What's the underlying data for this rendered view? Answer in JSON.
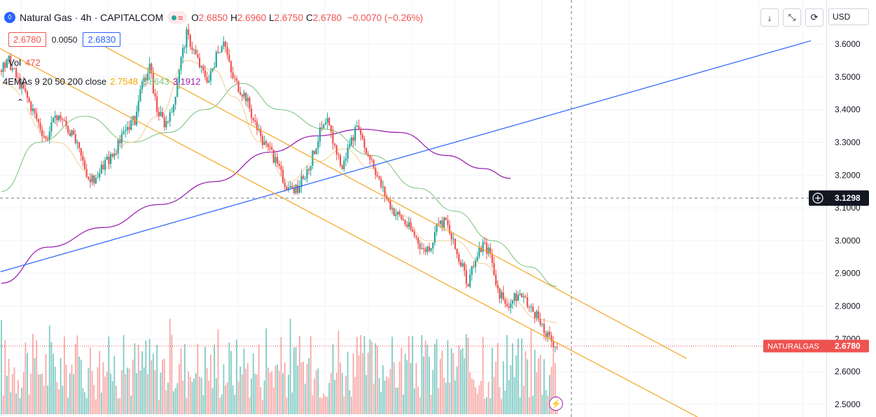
{
  "legend": {
    "symbol_title": "Natural Gas · 4h · CAPITALCOM",
    "icon_glyph": "◊",
    "wave_glyph": "≈",
    "ohlc": [
      {
        "label": "O",
        "value": "2.6850"
      },
      {
        "label": "H",
        "value": "2.6960"
      },
      {
        "label": "L",
        "value": "2.6750"
      },
      {
        "label": "C",
        "value": "2.6780"
      }
    ],
    "change": "−0.0070 (−0.26%)"
  },
  "trade": {
    "sell": "2.6780",
    "spread": "0.0050",
    "buy": "2.6830"
  },
  "volume": {
    "label": "Vol",
    "value": "472"
  },
  "ema": {
    "label": "4EMAs 9 20 50 200 close",
    "values": [
      {
        "value": "2.7548",
        "color": "#f2a900"
      },
      {
        "value": "2.8643",
        "color": "#81c784"
      },
      {
        "value": "3.1912",
        "color": "#9c27b0"
      }
    ]
  },
  "toolbar": {
    "down_glyph": "↓",
    "collapse_glyph": "⤡",
    "settings_glyph": "⟳",
    "currency": "USD"
  },
  "collapse_glyph": "⌃",
  "flash_glyph": "⚡",
  "crosshair_label": "3.1298",
  "last_price": {
    "symbol": "NATURALGAS",
    "value": "2.6780"
  },
  "colors": {
    "up": "#26a69a",
    "down": "#ef5350",
    "ema9": "#f2a900",
    "ema20": "#f2d29c",
    "ema50": "#81c784",
    "ema200": "#9c27b0",
    "trendline": "#2962ff",
    "channel": "#f5a623"
  },
  "chart_data": {
    "type": "candlestick",
    "ylim": [
      2.48,
      3.68
    ],
    "y_ticks": [
      "3.6000",
      "3.5000",
      "3.4000",
      "3.3000",
      "3.2000",
      "3.1000",
      "3.0000",
      "2.9000",
      "2.8000",
      "2.7000",
      "2.6000",
      "2.5000"
    ],
    "crosshair_y": 3.1298,
    "last_close": 2.678,
    "anchors": [
      [
        0,
        3.52
      ],
      [
        4,
        3.55
      ],
      [
        8,
        3.5
      ],
      [
        12,
        3.46
      ],
      [
        16,
        3.41
      ],
      [
        20,
        3.36
      ],
      [
        24,
        3.31
      ],
      [
        28,
        3.36
      ],
      [
        32,
        3.38
      ],
      [
        36,
        3.34
      ],
      [
        40,
        3.3
      ],
      [
        44,
        3.24
      ],
      [
        48,
        3.18
      ],
      [
        52,
        3.19
      ],
      [
        56,
        3.24
      ],
      [
        60,
        3.26
      ],
      [
        64,
        3.3
      ],
      [
        68,
        3.35
      ],
      [
        72,
        3.37
      ],
      [
        76,
        3.47
      ],
      [
        80,
        3.53
      ],
      [
        84,
        3.4
      ],
      [
        88,
        3.36
      ],
      [
        92,
        3.38
      ],
      [
        96,
        3.53
      ],
      [
        100,
        3.63
      ],
      [
        104,
        3.58
      ],
      [
        108,
        3.52
      ],
      [
        112,
        3.49
      ],
      [
        116,
        3.56
      ],
      [
        120,
        3.62
      ],
      [
        124,
        3.51
      ],
      [
        128,
        3.47
      ],
      [
        132,
        3.44
      ],
      [
        136,
        3.37
      ],
      [
        140,
        3.31
      ],
      [
        144,
        3.28
      ],
      [
        148,
        3.24
      ],
      [
        152,
        3.19
      ],
      [
        156,
        3.15
      ],
      [
        160,
        3.16
      ],
      [
        164,
        3.2
      ],
      [
        168,
        3.26
      ],
      [
        172,
        3.33
      ],
      [
        176,
        3.36
      ],
      [
        180,
        3.29
      ],
      [
        184,
        3.22
      ],
      [
        188,
        3.3
      ],
      [
        192,
        3.34
      ],
      [
        196,
        3.28
      ],
      [
        200,
        3.25
      ],
      [
        204,
        3.18
      ],
      [
        208,
        3.13
      ],
      [
        212,
        3.09
      ],
      [
        216,
        3.07
      ],
      [
        220,
        3.04
      ],
      [
        224,
        3.01
      ],
      [
        228,
        2.97
      ],
      [
        232,
        2.99
      ],
      [
        236,
        3.05
      ],
      [
        240,
        3.06
      ],
      [
        244,
        2.99
      ],
      [
        248,
        2.93
      ],
      [
        252,
        2.87
      ],
      [
        256,
        2.94
      ],
      [
        260,
        2.99
      ],
      [
        264,
        2.96
      ],
      [
        268,
        2.85
      ],
      [
        272,
        2.8
      ],
      [
        276,
        2.82
      ],
      [
        280,
        2.84
      ],
      [
        284,
        2.8
      ],
      [
        288,
        2.78
      ],
      [
        292,
        2.73
      ],
      [
        296,
        2.7
      ],
      [
        300,
        2.68
      ]
    ],
    "ema_curves": {
      "ema9": [
        [
          0,
          3.48
        ],
        [
          30,
          3.3
        ],
        [
          50,
          3.2
        ],
        [
          70,
          3.3
        ],
        [
          85,
          3.38
        ],
        [
          100,
          3.55
        ],
        [
          115,
          3.52
        ],
        [
          125,
          3.44
        ],
        [
          140,
          3.3
        ],
        [
          155,
          3.18
        ],
        [
          170,
          3.24
        ],
        [
          185,
          3.28
        ],
        [
          200,
          3.22
        ],
        [
          215,
          3.08
        ],
        [
          230,
          3.0
        ],
        [
          245,
          3.0
        ],
        [
          260,
          2.93
        ],
        [
          275,
          2.82
        ],
        [
          290,
          2.76
        ],
        [
          300,
          2.75
        ]
      ],
      "ema50": [
        [
          0,
          3.15
        ],
        [
          20,
          3.3
        ],
        [
          45,
          3.38
        ],
        [
          70,
          3.3
        ],
        [
          90,
          3.33
        ],
        [
          110,
          3.4
        ],
        [
          130,
          3.48
        ],
        [
          150,
          3.4
        ],
        [
          175,
          3.34
        ],
        [
          200,
          3.26
        ],
        [
          225,
          3.16
        ],
        [
          245,
          3.09
        ],
        [
          265,
          3.0
        ],
        [
          285,
          2.92
        ],
        [
          300,
          2.86
        ]
      ],
      "ema200": [
        [
          0,
          2.87
        ],
        [
          25,
          2.98
        ],
        [
          55,
          3.04
        ],
        [
          85,
          3.11
        ],
        [
          115,
          3.18
        ],
        [
          145,
          3.27
        ],
        [
          170,
          3.32
        ],
        [
          195,
          3.34
        ],
        [
          215,
          3.33
        ],
        [
          240,
          3.26
        ],
        [
          260,
          3.22
        ],
        [
          275,
          3.19
        ]
      ]
    },
    "trendlines": [
      {
        "from": [
          -0.5,
          2.905
        ],
        "to": [
          437,
          3.61
        ]
      },
      {
        "from": [
          -2,
          3.59
        ],
        "to": [
          383,
          2.44
        ]
      },
      {
        "from": [
          50,
          3.61
        ],
        "to": [
          370,
          2.64
        ]
      }
    ],
    "volume": {
      "bar_values": [
        10,
        14,
        8,
        18,
        9,
        12,
        7,
        16,
        11,
        13,
        9,
        20,
        15,
        8,
        17,
        10,
        12,
        9,
        14,
        11
      ]
    }
  }
}
